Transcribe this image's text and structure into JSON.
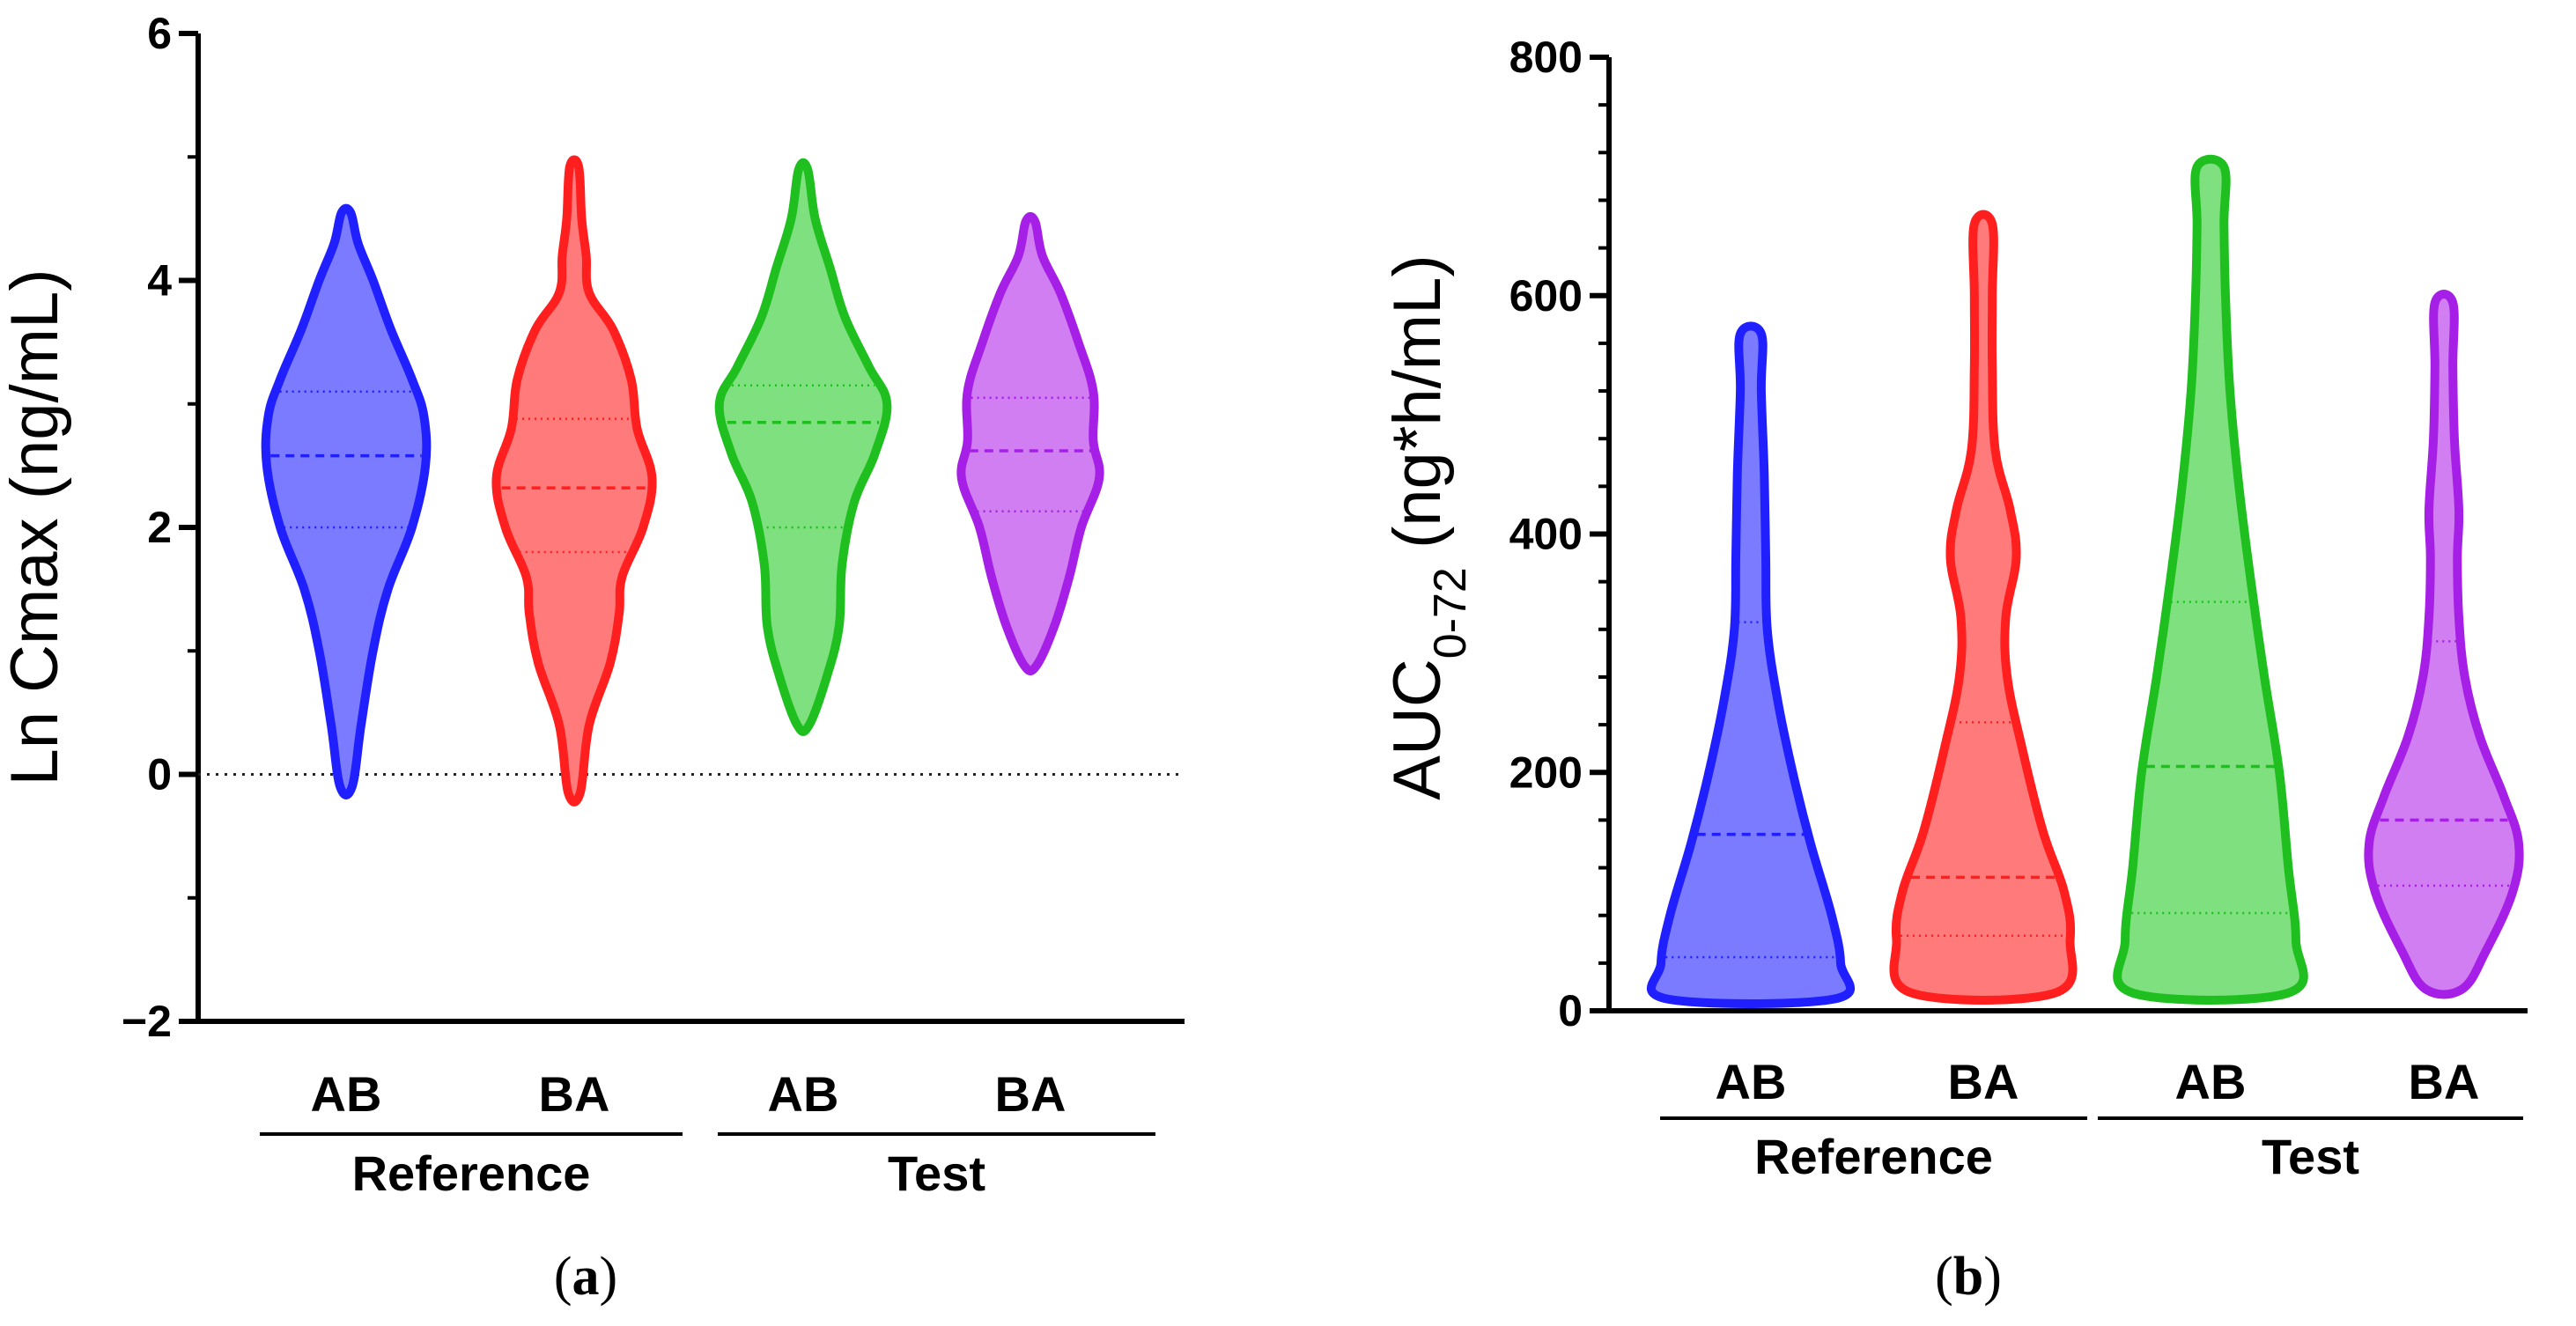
{
  "chart_data": [
    {
      "panel": "(a)",
      "type": "violin",
      "ylabel": "Ln Cmax (ng/mL)",
      "ylim": [
        -2,
        6
      ],
      "yticks": [
        "−2",
        "0",
        "2",
        "4",
        "6"
      ],
      "reference_line": 0,
      "groups": [
        {
          "label": "Reference",
          "categories": [
            "AB",
            "BA"
          ]
        },
        {
          "label": "Test",
          "categories": [
            "AB",
            "BA"
          ]
        }
      ],
      "series": [
        {
          "group": "Reference",
          "name": "AB",
          "color": "#1f1fff",
          "fill": "#7b7bff",
          "min": -0.1,
          "max": 4.55,
          "q1": 2.0,
          "median": 2.58,
          "q3": 3.1,
          "profile": [
            [
              -0.1,
              0.2
            ],
            [
              0.4,
              0.5
            ],
            [
              1.0,
              0.9
            ],
            [
              1.5,
              1.4
            ],
            [
              2.0,
              2.2
            ],
            [
              2.5,
              2.65
            ],
            [
              2.9,
              2.6
            ],
            [
              3.2,
              2.2
            ],
            [
              3.6,
              1.5
            ],
            [
              4.0,
              0.9
            ],
            [
              4.3,
              0.4
            ],
            [
              4.55,
              0.15
            ]
          ]
        },
        {
          "group": "Reference",
          "name": "BA",
          "color": "#ff1f1f",
          "fill": "#ff7b7b",
          "min": -0.15,
          "max": 4.92,
          "q1": 1.8,
          "median": 2.32,
          "q3": 2.88,
          "profile": [
            [
              -0.15,
              0.2
            ],
            [
              0.4,
              0.5
            ],
            [
              0.9,
              1.2
            ],
            [
              1.3,
              1.5
            ],
            [
              1.6,
              1.6
            ],
            [
              2.0,
              2.3
            ],
            [
              2.4,
              2.6
            ],
            [
              2.8,
              2.1
            ],
            [
              3.2,
              1.9
            ],
            [
              3.6,
              1.3
            ],
            [
              3.9,
              0.5
            ],
            [
              4.2,
              0.4
            ],
            [
              4.5,
              0.25
            ],
            [
              4.92,
              0.15
            ]
          ]
        },
        {
          "group": "Test",
          "name": "AB",
          "color": "#1fbf1f",
          "fill": "#7ee07e",
          "min": 0.4,
          "max": 4.9,
          "q1": 2.0,
          "median": 2.85,
          "q3": 3.15,
          "profile": [
            [
              0.4,
              0.2
            ],
            [
              0.8,
              0.8
            ],
            [
              1.2,
              1.2
            ],
            [
              1.7,
              1.3
            ],
            [
              2.2,
              1.7
            ],
            [
              2.6,
              2.4
            ],
            [
              3.0,
              2.8
            ],
            [
              3.3,
              2.2
            ],
            [
              3.7,
              1.4
            ],
            [
              4.1,
              0.9
            ],
            [
              4.5,
              0.4
            ],
            [
              4.9,
              0.15
            ]
          ]
        },
        {
          "group": "Test",
          "name": "BA",
          "color": "#a51fe6",
          "fill": "#d07ef2",
          "min": 0.88,
          "max": 4.48,
          "q1": 2.13,
          "median": 2.62,
          "q3": 3.05,
          "profile": [
            [
              0.88,
              0.2
            ],
            [
              1.2,
              0.8
            ],
            [
              1.6,
              1.3
            ],
            [
              2.0,
              1.7
            ],
            [
              2.4,
              2.3
            ],
            [
              2.7,
              2.1
            ],
            [
              3.1,
              2.1
            ],
            [
              3.5,
              1.6
            ],
            [
              3.9,
              1.0
            ],
            [
              4.2,
              0.4
            ],
            [
              4.48,
              0.15
            ]
          ]
        }
      ]
    },
    {
      "panel": "(b)",
      "type": "violin",
      "ylabel": "AUC",
      "ylabel_sub": "0-72",
      "ylabel_unit": " (ng*h/mL)",
      "ylim": [
        0,
        800
      ],
      "yticks": [
        "0",
        "200",
        "400",
        "600",
        "800"
      ],
      "groups": [
        {
          "label": "Reference",
          "categories": [
            "AB",
            "BA"
          ]
        },
        {
          "label": "Test",
          "categories": [
            "AB",
            "BA"
          ]
        }
      ],
      "series": [
        {
          "group": "Reference",
          "name": "AB",
          "color": "#1f1fff",
          "fill": "#7b7bff",
          "min": 10,
          "max": 568,
          "q1": 45,
          "median": 148,
          "q3": 326,
          "profile": [
            [
              10,
              2.8
            ],
            [
              40,
              3.0
            ],
            [
              80,
              2.7
            ],
            [
              140,
              2.0
            ],
            [
              200,
              1.4
            ],
            [
              260,
              0.9
            ],
            [
              320,
              0.55
            ],
            [
              380,
              0.5
            ],
            [
              450,
              0.45
            ],
            [
              520,
              0.35
            ],
            [
              568,
              0.35
            ]
          ]
        },
        {
          "group": "Reference",
          "name": "BA",
          "color": "#ff1f1f",
          "fill": "#ff7b7b",
          "min": 15,
          "max": 660,
          "q1": 63,
          "median": 112,
          "q3": 242,
          "profile": [
            [
              15,
              2.4
            ],
            [
              60,
              2.9
            ],
            [
              100,
              2.7
            ],
            [
              150,
              2.0
            ],
            [
              220,
              1.3
            ],
            [
              280,
              0.8
            ],
            [
              330,
              0.75
            ],
            [
              380,
              1.1
            ],
            [
              420,
              0.9
            ],
            [
              470,
              0.4
            ],
            [
              540,
              0.3
            ],
            [
              600,
              0.3
            ],
            [
              660,
              0.3
            ]
          ]
        },
        {
          "group": "Test",
          "name": "AB",
          "color": "#1fbf1f",
          "fill": "#7ee07e",
          "min": 15,
          "max": 708,
          "q1": 82,
          "median": 205,
          "q3": 343,
          "profile": [
            [
              15,
              2.6
            ],
            [
              60,
              2.85
            ],
            [
              120,
              2.6
            ],
            [
              200,
              2.3
            ],
            [
              280,
              1.8
            ],
            [
              360,
              1.35
            ],
            [
              440,
              0.95
            ],
            [
              520,
              0.65
            ],
            [
              600,
              0.5
            ],
            [
              660,
              0.45
            ],
            [
              708,
              0.45
            ]
          ]
        },
        {
          "group": "Test",
          "name": "BA",
          "color": "#a51fe6",
          "fill": "#d07ef2",
          "min": 18,
          "max": 594,
          "q1": 105,
          "median": 160,
          "q3": 310,
          "profile": [
            [
              18,
              0.6
            ],
            [
              50,
              1.4
            ],
            [
              100,
              2.3
            ],
            [
              140,
              2.5
            ],
            [
              180,
              2.0
            ],
            [
              230,
              1.2
            ],
            [
              280,
              0.7
            ],
            [
              330,
              0.5
            ],
            [
              380,
              0.45
            ],
            [
              420,
              0.5
            ],
            [
              480,
              0.35
            ],
            [
              540,
              0.3
            ],
            [
              594,
              0.3
            ]
          ]
        }
      ]
    }
  ]
}
